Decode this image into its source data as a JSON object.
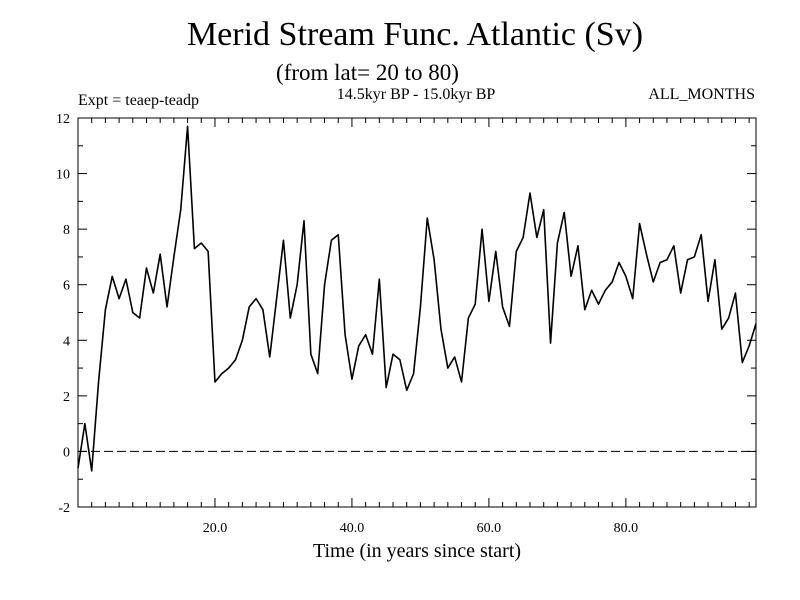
{
  "header": {
    "title": "Merid Stream Func. Atlantic (Sv)",
    "subtitle": "(from lat= 20 to 80)",
    "experiment": "Expt = teaep-teadp",
    "period": "14.5kyr BP - 15.0kyr BP",
    "months": "ALL_MONTHS"
  },
  "chart_data": {
    "type": "line",
    "title": "Merid Stream Func. Atlantic (Sv)",
    "xlabel": "Time (in years since start)",
    "ylabel": "",
    "xlim": [
      0,
      99
    ],
    "ylim": [
      -2,
      12
    ],
    "x_ticks": [
      20,
      40,
      60,
      80
    ],
    "x_tick_labels": [
      "20.0",
      "40.0",
      "60.0",
      "80.0"
    ],
    "y_ticks": [
      -2,
      0,
      2,
      4,
      6,
      8,
      10,
      12
    ],
    "y_tick_labels": [
      "-2",
      "0",
      "2",
      "4",
      "6",
      "8",
      "10",
      "12"
    ],
    "reference_line": {
      "y": 0,
      "style": "dashed"
    },
    "grid": false,
    "series": [
      {
        "color": "#000000",
        "x": [
          0,
          1,
          2,
          3,
          4,
          5,
          6,
          7,
          8,
          9,
          10,
          11,
          12,
          13,
          14,
          15,
          16,
          17,
          18,
          19,
          20,
          21,
          22,
          23,
          24,
          25,
          26,
          27,
          28,
          29,
          30,
          31,
          32,
          33,
          34,
          35,
          36,
          37,
          38,
          39,
          40,
          41,
          42,
          43,
          44,
          45,
          46,
          47,
          48,
          49,
          50,
          51,
          52,
          53,
          54,
          55,
          56,
          57,
          58,
          59,
          60,
          61,
          62,
          63,
          64,
          65,
          66,
          67,
          68,
          69,
          70,
          71,
          72,
          73,
          74,
          75,
          76,
          77,
          78,
          79,
          80,
          81,
          82,
          83,
          84,
          85,
          86,
          87,
          88,
          89,
          90,
          91,
          92,
          93,
          94,
          95,
          96,
          97,
          98,
          99
        ],
        "values": [
          -0.6,
          1.0,
          -0.7,
          2.5,
          5.1,
          6.3,
          5.5,
          6.2,
          5.0,
          4.8,
          6.6,
          5.7,
          7.1,
          5.2,
          7.0,
          8.7,
          11.7,
          7.3,
          7.5,
          7.2,
          2.5,
          2.8,
          3.0,
          3.3,
          4.0,
          5.2,
          5.5,
          5.1,
          3.4,
          5.5,
          7.6,
          4.8,
          6.0,
          8.3,
          3.5,
          2.8,
          6.0,
          7.6,
          7.8,
          4.2,
          2.6,
          3.8,
          4.2,
          3.5,
          6.2,
          2.3,
          3.5,
          3.3,
          2.2,
          2.8,
          5.2,
          8.4,
          6.9,
          4.4,
          3.0,
          3.4,
          2.5,
          4.8,
          5.3,
          8.0,
          5.4,
          7.2,
          5.2,
          4.5,
          7.2,
          7.7,
          9.3,
          7.7,
          8.7,
          3.9,
          7.5,
          8.6,
          6.3,
          7.4,
          5.1,
          5.8,
          5.3,
          5.8,
          6.1,
          6.8,
          6.3,
          5.5,
          8.2,
          7.1,
          6.1,
          6.8,
          6.9,
          7.4,
          5.7,
          6.9,
          7.0,
          7.8,
          5.4,
          6.9,
          4.4,
          4.8,
          5.7,
          3.2,
          3.8,
          4.6
        ]
      }
    ]
  }
}
